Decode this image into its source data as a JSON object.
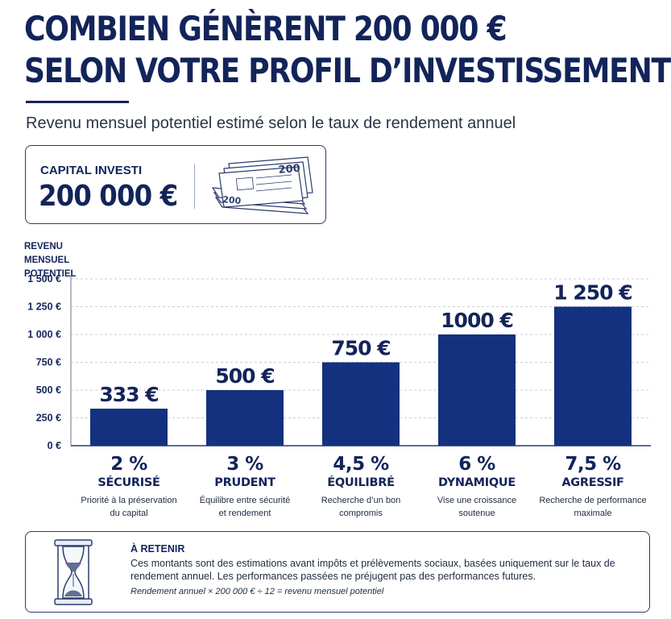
{
  "title": {
    "line1": "COMBIEN GÉNÈRENT 200 000 €",
    "line2": "SELON VOTRE PROFIL D’INVESTISSEMENT ?"
  },
  "subtitle": "Revenu mensuel potentiel estimé selon le taux de rendement annuel",
  "capital": {
    "label": "CAPITAL INVESTI",
    "value": "200 000 €",
    "banknote_denomination": "200",
    "icon": "banknotes-stack-icon"
  },
  "colors": {
    "primary": "#13245a",
    "bar": "#13317f",
    "grid": "#c8cdd8"
  },
  "chart_data": {
    "type": "bar",
    "ylabel": "REVENU MENSUEL POTENTIEL",
    "ylim": [
      0,
      1500
    ],
    "yticks": [
      0,
      250,
      500,
      750,
      1000,
      1250,
      1500
    ],
    "ytick_labels": [
      "0 €",
      "250 €",
      "500 €",
      "750 €",
      "1 000 €",
      "1 250 €",
      "1 500 €"
    ],
    "grid": true,
    "categories": [
      "2 %",
      "3 %",
      "4,5 %",
      "6 %",
      "7,5 %"
    ],
    "values": [
      333,
      500,
      750,
      1000,
      1250
    ],
    "value_labels": [
      "333 €",
      "500 €",
      "750 €",
      "1000 €",
      "1 250 €"
    ],
    "profiles": [
      {
        "rate": "2 %",
        "name": "SÉCURISÉ",
        "desc": [
          "Priorité à la préservation",
          "du capital"
        ]
      },
      {
        "rate": "3 %",
        "name": "PRUDENT",
        "desc": [
          "Équilibre entre sécurité",
          "et rendement"
        ]
      },
      {
        "rate": "4,5 %",
        "name": "ÉQUILIBRÉ",
        "desc": [
          "Recherche d’un bon",
          "compromis"
        ]
      },
      {
        "rate": "6 %",
        "name": "DYNAMIQUE",
        "desc": [
          "Vise une croissance",
          "soutenue"
        ]
      },
      {
        "rate": "7,5 %",
        "name": "AGRESSIF",
        "desc": [
          "Recherche de performance",
          "maximale"
        ]
      }
    ]
  },
  "note": {
    "icon": "hourglass-icon",
    "title": "À RETENIR",
    "text": "Ces montants sont des estimations avant impôts et prélèvements sociaux, basées uniquement sur le taux de rendement annuel. Les performances passées ne préjugent pas des performances futures.",
    "formula": "Rendement annuel × 200 000 € ÷ 12 = revenu mensuel potentiel"
  }
}
